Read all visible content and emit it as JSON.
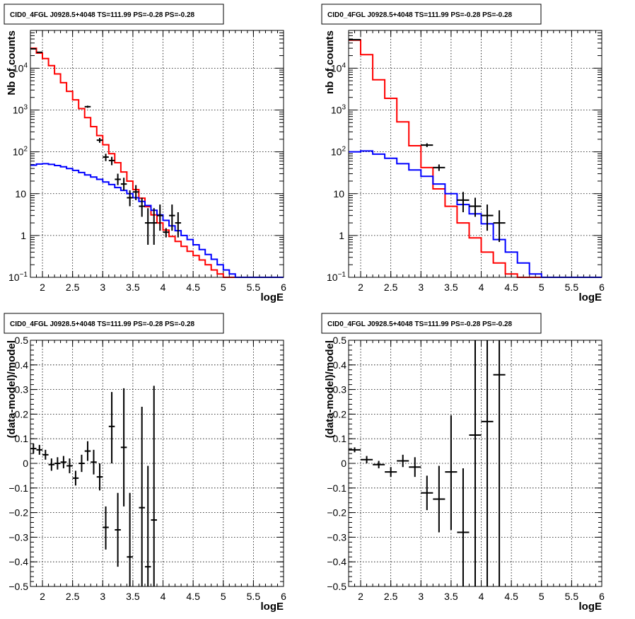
{
  "chart_data": [
    {
      "type": "line",
      "title": "CID0_4FGL J0928.5+4048 TS=111.99 PS=-0.28 PS=-0.28",
      "xlabel": "logE",
      "ylabel": "Nb of counts",
      "yscale": "log",
      "xlim": [
        1.8,
        6.0
      ],
      "ylim": [
        0.1,
        80000
      ],
      "grid": true,
      "xticks": [
        "2",
        "2.5",
        "3",
        "3.5",
        "4",
        "4.5",
        "5",
        "5.5",
        "6"
      ],
      "yticks": [
        {
          "v": 0.1,
          "base": "10",
          "exp": "−1",
          "text": ""
        },
        {
          "v": 1,
          "text": "1"
        },
        {
          "v": 10,
          "text": "10"
        },
        {
          "v": 100,
          "base": "10",
          "exp": "2",
          "text": ""
        },
        {
          "v": 1000,
          "base": "10",
          "exp": "3",
          "text": ""
        },
        {
          "v": 10000,
          "base": "10",
          "exp": "4",
          "text": ""
        }
      ],
      "binwidth": 0.1,
      "series": [
        {
          "color": "#ff0000",
          "style": "step",
          "bin_start": 1.8,
          "values": [
            30000,
            23000,
            17000,
            11500,
            7300,
            4500,
            2800,
            1750,
            1080,
            660,
            400,
            245,
            148,
            90,
            55,
            33,
            20,
            12.5,
            7.8,
            4.9,
            3.1,
            2.0,
            1.35,
            0.95,
            0.72,
            0.55,
            0.42,
            0.33,
            0.26,
            0.2,
            0.15,
            0.12,
            0.1,
            0.1,
            0.1,
            0.1,
            0.1,
            0.1,
            0.1,
            0.1,
            0.1,
            0.1
          ]
        },
        {
          "color": "#0000ff",
          "style": "step",
          "bin_start": 1.8,
          "values": [
            48,
            51,
            52,
            50,
            47,
            44,
            40,
            36,
            32,
            28,
            25,
            22,
            19,
            16.5,
            14,
            12,
            10,
            8,
            6.5,
            5.2,
            4.0,
            3.1,
            2.3,
            1.7,
            1.3,
            1.0,
            0.8,
            0.6,
            0.46,
            0.35,
            0.27,
            0.2,
            0.15,
            0.12,
            0.1,
            0.1,
            0.1,
            0.1,
            0.1,
            0.1,
            0.1,
            0.1
          ]
        },
        {
          "color": "#000000",
          "style": "errorbar",
          "points": [
            {
              "x": 1.85,
              "y": 29000,
              "lo": 28600,
              "hi": 29400
            },
            {
              "x": 1.95,
              "y": 24000,
              "lo": 23700,
              "hi": 24300
            },
            {
              "x": 2.75,
              "y": 1200,
              "lo": 1130,
              "hi": 1270
            },
            {
              "x": 2.95,
              "y": 190,
              "lo": 165,
              "hi": 215
            },
            {
              "x": 3.05,
              "y": 75,
              "lo": 60,
              "hi": 90
            },
            {
              "x": 3.15,
              "y": 62,
              "lo": 48,
              "hi": 76
            },
            {
              "x": 3.25,
              "y": 22,
              "lo": 16,
              "hi": 30
            },
            {
              "x": 3.35,
              "y": 17,
              "lo": 12,
              "hi": 24
            },
            {
              "x": 3.45,
              "y": 8,
              "lo": 5,
              "hi": 12
            },
            {
              "x": 3.55,
              "y": 11,
              "lo": 7,
              "hi": 16
            },
            {
              "x": 3.65,
              "y": 5,
              "lo": 2.8,
              "hi": 8
            },
            {
              "x": 3.75,
              "y": 2,
              "lo": 0.6,
              "hi": 4.5
            },
            {
              "x": 3.85,
              "y": 2,
              "lo": 0.6,
              "hi": 4.5
            },
            {
              "x": 3.95,
              "y": 3,
              "lo": 1.3,
              "hi": 5.5
            },
            {
              "x": 4.05,
              "y": 1.2,
              "lo": 0.9,
              "hi": 1.5
            },
            {
              "x": 4.15,
              "y": 3,
              "lo": 1.3,
              "hi": 5.5
            },
            {
              "x": 4.25,
              "y": 2,
              "lo": 0.9,
              "hi": 3.6
            }
          ]
        }
      ]
    },
    {
      "type": "line",
      "title": "CID0_4FGL J0928.5+4048 TS=111.99 PS=-0.28 PS=-0.28",
      "xlabel": "logE",
      "ylabel": "nb of counts",
      "yscale": "log",
      "xlim": [
        1.8,
        6.0
      ],
      "ylim": [
        0.1,
        80000
      ],
      "grid": true,
      "xticks": [
        "2",
        "2.5",
        "3",
        "3.5",
        "4",
        "4.5",
        "5",
        "5.5",
        "6"
      ],
      "yticks": [
        {
          "v": 0.1,
          "base": "10",
          "exp": "−1",
          "text": ""
        },
        {
          "v": 1,
          "text": "1"
        },
        {
          "v": 10,
          "text": "10"
        },
        {
          "v": 100,
          "base": "10",
          "exp": "2",
          "text": ""
        },
        {
          "v": 1000,
          "base": "10",
          "exp": "3",
          "text": ""
        },
        {
          "v": 10000,
          "base": "10",
          "exp": "4",
          "text": ""
        }
      ],
      "binwidth": 0.2,
      "series": [
        {
          "color": "#ff0000",
          "style": "step",
          "bin_start": 1.8,
          "values": [
            47000,
            21000,
            5300,
            1900,
            520,
            140,
            42,
            13,
            5.0,
            2.0,
            0.88,
            0.4,
            0.22,
            0.12,
            0.1,
            0.1,
            0.1,
            0.1,
            0.1,
            0.1,
            0.1
          ]
        },
        {
          "color": "#0000ff",
          "style": "step",
          "bin_start": 1.8,
          "values": [
            100,
            105,
            88,
            70,
            52,
            37,
            26,
            17,
            10,
            5.5,
            3.3,
            1.9,
            0.8,
            0.4,
            0.22,
            0.12,
            0.1,
            0.1,
            0.1,
            0.1,
            0.1
          ]
        },
        {
          "color": "#000000",
          "style": "errorbar",
          "points": [
            {
              "x": 1.9,
              "y": 48000,
              "lo": 47400,
              "hi": 48600
            },
            {
              "x": 3.1,
              "y": 145,
              "lo": 130,
              "hi": 160
            },
            {
              "x": 3.3,
              "y": 42,
              "lo": 35,
              "hi": 50
            },
            {
              "x": 3.7,
              "y": 7,
              "lo": 3.6,
              "hi": 11
            },
            {
              "x": 3.9,
              "y": 5.0,
              "lo": 2.8,
              "hi": 8
            },
            {
              "x": 4.1,
              "y": 3.0,
              "lo": 1.3,
              "hi": 5.5
            },
            {
              "x": 4.3,
              "y": 2.0,
              "lo": 0.7,
              "hi": 4.0
            }
          ]
        }
      ]
    },
    {
      "type": "scatter",
      "title": "CID0_4FGL J0928.5+4048 TS=111.99 PS=-0.28 PS=-0.28",
      "xlabel": "logE",
      "ylabel": "(data-model)/model",
      "xlim": [
        1.8,
        6.0
      ],
      "ylim": [
        -0.5,
        0.5
      ],
      "grid": true,
      "xticks": [
        "2",
        "2.5",
        "3",
        "3.5",
        "4",
        "4.5",
        "5",
        "5.5",
        "6"
      ],
      "yticks": [
        "−0.5",
        "−0.4",
        "−0.3",
        "−0.2",
        "−0.1",
        "0",
        "0.1",
        "0.2",
        "0.3",
        "0.4",
        "0.5"
      ],
      "binwidth": 0.1,
      "series": [
        {
          "color": "#000000",
          "style": "errorbar",
          "points": [
            {
              "x": 1.85,
              "y": 0.06,
              "lo": 0.04,
              "hi": 0.08
            },
            {
              "x": 1.95,
              "y": 0.055,
              "lo": 0.035,
              "hi": 0.075
            },
            {
              "x": 2.05,
              "y": 0.035,
              "lo": 0.015,
              "hi": 0.055
            },
            {
              "x": 2.15,
              "y": -0.005,
              "lo": -0.03,
              "hi": 0.02
            },
            {
              "x": 2.25,
              "y": 0.0,
              "lo": -0.025,
              "hi": 0.025
            },
            {
              "x": 2.35,
              "y": 0.005,
              "lo": -0.02,
              "hi": 0.03
            },
            {
              "x": 2.45,
              "y": -0.01,
              "lo": -0.04,
              "hi": 0.02
            },
            {
              "x": 2.55,
              "y": -0.06,
              "lo": -0.09,
              "hi": -0.03
            },
            {
              "x": 2.65,
              "y": 0.0,
              "lo": -0.035,
              "hi": 0.035
            },
            {
              "x": 2.75,
              "y": 0.05,
              "lo": 0.01,
              "hi": 0.09
            },
            {
              "x": 2.85,
              "y": 0.005,
              "lo": -0.045,
              "hi": 0.055
            },
            {
              "x": 2.95,
              "y": -0.055,
              "lo": -0.11,
              "hi": 0.0
            },
            {
              "x": 3.05,
              "y": -0.26,
              "lo": -0.35,
              "hi": -0.175
            },
            {
              "x": 3.15,
              "y": 0.15,
              "lo": 0.0,
              "hi": 0.29
            },
            {
              "x": 3.25,
              "y": -0.27,
              "lo": -0.42,
              "hi": -0.12
            },
            {
              "x": 3.35,
              "y": 0.065,
              "lo": -0.175,
              "hi": 0.305
            },
            {
              "x": 3.45,
              "y": -0.38,
              "lo": -0.5,
              "hi": -0.12
            },
            {
              "x": 3.65,
              "y": -0.18,
              "lo": -0.5,
              "hi": 0.23
            },
            {
              "x": 3.75,
              "y": -0.42,
              "lo": -0.5,
              "hi": -0.01
            },
            {
              "x": 3.85,
              "y": -0.23,
              "lo": -0.5,
              "hi": 0.315
            }
          ]
        }
      ]
    },
    {
      "type": "scatter",
      "title": "CID0_4FGL J0928.5+4048 TS=111.99 PS=-0.28 PS=-0.28",
      "xlabel": "logE",
      "ylabel": "(data-model)/model",
      "xlim": [
        1.8,
        6.0
      ],
      "ylim": [
        -0.5,
        0.5
      ],
      "grid": true,
      "xticks": [
        "2",
        "2.5",
        "3",
        "3.5",
        "4",
        "4.5",
        "5",
        "5.5",
        "6"
      ],
      "yticks": [
        "−0.5",
        "−0.4",
        "−0.3",
        "−0.2",
        "−0.1",
        "0",
        "0.1",
        "0.2",
        "0.3",
        "0.4",
        "0.5"
      ],
      "binwidth": 0.2,
      "series": [
        {
          "color": "#000000",
          "style": "errorbar",
          "points": [
            {
              "x": 1.9,
              "y": 0.055,
              "lo": 0.045,
              "hi": 0.065
            },
            {
              "x": 2.1,
              "y": 0.015,
              "lo": 0.0,
              "hi": 0.03
            },
            {
              "x": 2.3,
              "y": -0.005,
              "lo": -0.02,
              "hi": 0.01
            },
            {
              "x": 2.5,
              "y": -0.035,
              "lo": -0.055,
              "hi": -0.015
            },
            {
              "x": 2.7,
              "y": 0.01,
              "lo": -0.015,
              "hi": 0.035
            },
            {
              "x": 2.9,
              "y": -0.015,
              "lo": -0.055,
              "hi": 0.025
            },
            {
              "x": 3.1,
              "y": -0.12,
              "lo": -0.19,
              "hi": -0.05
            },
            {
              "x": 3.3,
              "y": -0.145,
              "lo": -0.28,
              "hi": -0.01
            },
            {
              "x": 3.5,
              "y": -0.035,
              "lo": -0.27,
              "hi": 0.195
            },
            {
              "x": 3.7,
              "y": -0.28,
              "lo": -0.5,
              "hi": -0.02
            },
            {
              "x": 3.9,
              "y": 0.115,
              "lo": -0.5,
              "hi": 0.5
            },
            {
              "x": 4.1,
              "y": 0.17,
              "lo": -0.5,
              "hi": 0.5
            },
            {
              "x": 4.3,
              "y": 0.36,
              "lo": -0.5,
              "hi": 0.5
            }
          ]
        }
      ]
    }
  ]
}
